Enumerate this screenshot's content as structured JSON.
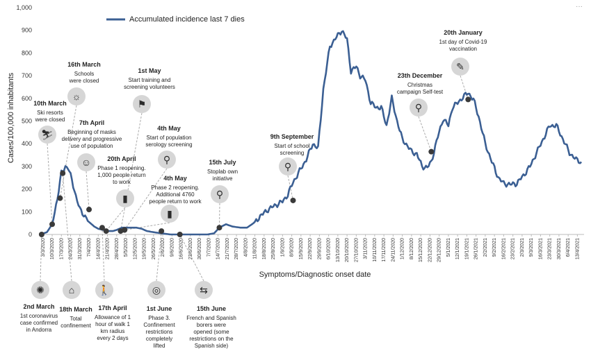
{
  "chart_data": {
    "type": "line",
    "ylabel": "Cases/100,000 inhabitants",
    "xlabel": "Symptoms/Diagnostic onset date",
    "ylim": [
      0,
      1000
    ],
    "yticks": [
      "0",
      "100",
      "200",
      "300",
      "400",
      "500",
      "600",
      "700",
      "800",
      "900",
      "1,000"
    ],
    "xticks": [
      "3/3/2020",
      "10/3/2020",
      "17/3/2020",
      "24/3/2020",
      "31/3/2020",
      "7/4/2020",
      "14/4/2020",
      "21/4/2020",
      "28/4/2020",
      "5/5/2020",
      "12/5/2020",
      "19/5/2020",
      "26/5/2020",
      "2/6/2020",
      "9/6/2020",
      "16/6/2020",
      "23/6/2020",
      "30/6/2020",
      "7/7/2020",
      "14/7/2020",
      "21/7/2020",
      "28/7/2020",
      "4/8/2020",
      "11/8/2020",
      "18/8/2020",
      "25/8/2020",
      "1/9/2020",
      "8/9/2020",
      "15/9/2020",
      "22/9/2020",
      "29/9/2020",
      "6/10/2020",
      "13/10/2020",
      "20/10/2020",
      "27/10/2020",
      "3/11/2020",
      "10/11/2020",
      "17/11/2020",
      "24/11/2020",
      "1/12/2020",
      "8/12/2020",
      "15/12/2020",
      "22/12/2020",
      "29/12/2020",
      "5/1/2021",
      "12/1/2021",
      "19/1/2021",
      "26/1/2021",
      "2/2/2021",
      "9/2/2021",
      "16/2/2021",
      "23/2/2021",
      "2/3/2021",
      "9/3/2021",
      "16/3/2021",
      "23/3/2021",
      "30/3/2021",
      "6/4/2021",
      "13/4/2021"
    ],
    "grid": false,
    "legend_position": "top-left",
    "series": [
      {
        "name": "Accumulated incidence last 7 dies",
        "color": "#3b5f93",
        "x": [
          "2020-03-01",
          "2020-03-06",
          "2020-03-10",
          "2020-03-14",
          "2020-03-17",
          "2020-03-20",
          "2020-03-22",
          "2020-03-25",
          "2020-03-28",
          "2020-03-31",
          "2020-04-04",
          "2020-04-07",
          "2020-04-11",
          "2020-04-14",
          "2020-04-18",
          "2020-04-21",
          "2020-04-25",
          "2020-04-28",
          "2020-05-02",
          "2020-05-05",
          "2020-05-09",
          "2020-05-13",
          "2020-05-17",
          "2020-05-21",
          "2020-05-26",
          "2020-06-01",
          "2020-06-08",
          "2020-06-15",
          "2020-06-22",
          "2020-06-29",
          "2020-07-06",
          "2020-07-11",
          "2020-07-15",
          "2020-07-20",
          "2020-07-25",
          "2020-07-31",
          "2020-08-05",
          "2020-08-10",
          "2020-08-15",
          "2020-08-21",
          "2020-08-27",
          "2020-09-01",
          "2020-09-05",
          "2020-09-09",
          "2020-09-14",
          "2020-09-19",
          "2020-09-24",
          "2020-09-28",
          "2020-10-02",
          "2020-10-07",
          "2020-10-12",
          "2020-10-16",
          "2020-10-20",
          "2020-10-23",
          "2020-10-27",
          "2020-10-30",
          "2020-11-03",
          "2020-11-07",
          "2020-11-11",
          "2020-11-15",
          "2020-11-19",
          "2020-11-23",
          "2020-11-27",
          "2020-12-01",
          "2020-12-05",
          "2020-12-08",
          "2020-12-12",
          "2020-12-16",
          "2020-12-20",
          "2020-12-23",
          "2020-12-27",
          "2021-01-01",
          "2021-01-05",
          "2021-01-08",
          "2021-01-12",
          "2021-01-16",
          "2021-01-20",
          "2021-01-24",
          "2021-01-28",
          "2021-02-02",
          "2021-02-07",
          "2021-02-12",
          "2021-02-16",
          "2021-02-21",
          "2021-02-26",
          "2021-03-03",
          "2021-03-08",
          "2021-03-13",
          "2021-03-18",
          "2021-03-23",
          "2021-03-28",
          "2021-04-02",
          "2021-04-07",
          "2021-04-12",
          "2021-04-16"
        ],
        "y": [
          0,
          10,
          45,
          160,
          270,
          300,
          295,
          240,
          170,
          110,
          80,
          55,
          35,
          25,
          20,
          15,
          15,
          20,
          30,
          30,
          30,
          30,
          25,
          15,
          10,
          5,
          0,
          0,
          0,
          0,
          0,
          5,
          30,
          45,
          35,
          30,
          30,
          50,
          80,
          110,
          130,
          145,
          175,
          230,
          280,
          330,
          400,
          380,
          640,
          830,
          870,
          900,
          860,
          720,
          740,
          700,
          680,
          580,
          560,
          560,
          480,
          600,
          500,
          420,
          390,
          365,
          355,
          300,
          295,
          320,
          410,
          510,
          480,
          560,
          580,
          605,
          625,
          595,
          520,
          400,
          320,
          250,
          225,
          220,
          225,
          260,
          300,
          360,
          420,
          480,
          480,
          420,
          360,
          330,
          320
        ]
      }
    ],
    "annotations": [
      {
        "id": "ann-2-march",
        "date": "2nd March",
        "text": [
          "1st coronavirus",
          "case confirmed",
          "in Andorra"
        ],
        "icon": "virus-icon",
        "x": "2020-03-02",
        "y": 0,
        "side": "below"
      },
      {
        "id": "ann-10-march",
        "date": "10th March",
        "text": [
          "Ski resorts",
          "were closed"
        ],
        "icon": "ski-icon",
        "x": "2020-03-10",
        "y": 45,
        "side": "above"
      },
      {
        "id": "ann-16-march",
        "date": "16th March",
        "text": [
          "Schools",
          "were closed"
        ],
        "icon": "school-icon",
        "x": "2020-03-16",
        "y": 160,
        "side": "above"
      },
      {
        "id": "ann-18-march",
        "date": "18th March",
        "text": [
          "Total",
          "confinement"
        ],
        "icon": "house-icon",
        "x": "2020-03-18",
        "y": 270,
        "side": "below"
      },
      {
        "id": "ann-7-april",
        "date": "7th April",
        "text": [
          "Beginning of masks",
          "delivery and progressive",
          "use of population"
        ],
        "icon": "mask-icon",
        "x": "2020-04-07",
        "y": 110,
        "side": "above"
      },
      {
        "id": "ann-17-april",
        "date": "17th April",
        "text": [
          "Allowance of 1",
          "hour of walk 1",
          "km radius",
          "every 2 days"
        ],
        "icon": "walker-icon",
        "x": "2020-04-17",
        "y": 30,
        "side": "below"
      },
      {
        "id": "ann-20-april",
        "date": "20th April",
        "text": [
          "Phase 1 reopening.",
          "1,000 people return",
          "to work"
        ],
        "icon": "growth-chart-icon",
        "x": "2020-04-20",
        "y": 15,
        "side": "above"
      },
      {
        "id": "ann-1-may",
        "date": "1st May",
        "text": [
          "Start training and",
          "screening volunteers"
        ],
        "icon": "flag-icon",
        "x": "2020-05-01",
        "y": 15,
        "side": "above"
      },
      {
        "id": "ann-4-may-a",
        "date": "4th May",
        "text": [
          "Start of population",
          "serology screening"
        ],
        "icon": "search-icon",
        "x": "2020-05-04",
        "y": 20,
        "side": "above"
      },
      {
        "id": "ann-4-may-b",
        "date": "4th May",
        "text": [
          "Phase 2 reopening.",
          "Additional 4760",
          "people return to work"
        ],
        "icon": "growth-chart-icon",
        "x": "2020-05-04",
        "y": 20,
        "side": "above"
      },
      {
        "id": "ann-1-june",
        "date": "1st June",
        "text": [
          "Phase 3.",
          "Confinement",
          "restrictions",
          "completely",
          "lifted"
        ],
        "icon": "target-icon",
        "x": "2020-06-01",
        "y": 15,
        "side": "below"
      },
      {
        "id": "ann-15-june",
        "date": "15th June",
        "text": [
          "French and Spanish",
          "borers were",
          "opened (some",
          "restrictions on the",
          "Spanish side)"
        ],
        "icon": "signpost-icon",
        "x": "2020-06-15",
        "y": 0,
        "side": "below"
      },
      {
        "id": "ann-15-july",
        "date": "15th July",
        "text": [
          "Stoplab own",
          "initiative"
        ],
        "icon": "search-icon",
        "x": "2020-07-15",
        "y": 30,
        "side": "above"
      },
      {
        "id": "ann-9-september",
        "date": "9th September",
        "text": [
          "Start of school",
          "screening"
        ],
        "icon": "search-icon",
        "x": "2020-09-09",
        "y": 150,
        "side": "above"
      },
      {
        "id": "ann-23-december",
        "date": "23th December",
        "text": [
          "Christmas",
          "campaign Self-test"
        ],
        "icon": "search-icon",
        "x": "2020-12-23",
        "y": 365,
        "side": "above"
      },
      {
        "id": "ann-20-january",
        "date": "20th January",
        "text": [
          "1st day of Covid-19",
          "vaccination"
        ],
        "icon": "syringe-icon",
        "x": "2021-01-20",
        "y": 595,
        "side": "above"
      }
    ]
  }
}
